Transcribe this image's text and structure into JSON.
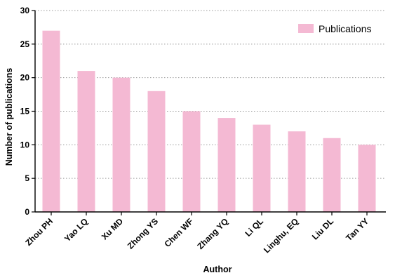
{
  "chart_data": {
    "type": "bar",
    "title": "",
    "xlabel": "Author",
    "ylabel": "Number of publications",
    "categories": [
      "Zhou PH",
      "Yao LQ",
      "Xu MD",
      "Zhong YS",
      "Chen WF",
      "Zhang YQ",
      "Li QL",
      "Linghu, EQ",
      "Liu DL",
      "Tan YY"
    ],
    "series": [
      {
        "name": "Publications",
        "values": [
          27,
          21,
          20,
          18,
          15,
          14,
          13,
          12,
          11,
          10
        ]
      }
    ],
    "ylim": [
      0,
      30
    ],
    "yticks": [
      "0",
      "5",
      "10",
      "15",
      "20",
      "25",
      "30"
    ],
    "grid": "horizontal-dotted",
    "legend_position": "top-right",
    "bar_color": "#F4B9D3"
  }
}
